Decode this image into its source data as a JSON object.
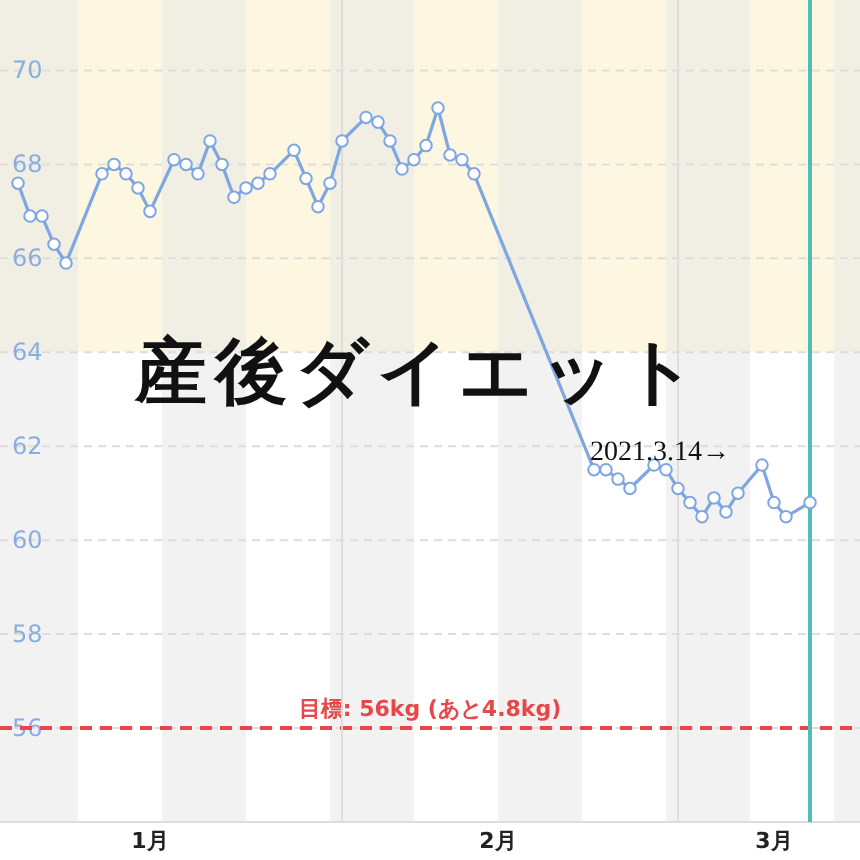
{
  "chart_data": {
    "type": "line",
    "title": "産後ダイエット",
    "x": [
      "2021-01-05",
      "2021-01-06",
      "2021-01-07",
      "2021-01-08",
      "2021-01-09",
      "2021-01-12",
      "2021-01-13",
      "2021-01-14",
      "2021-01-15",
      "2021-01-16",
      "2021-01-18",
      "2021-01-19",
      "2021-01-20",
      "2021-01-21",
      "2021-01-22",
      "2021-01-23",
      "2021-01-24",
      "2021-01-25",
      "2021-01-26",
      "2021-01-28",
      "2021-01-29",
      "2021-01-30",
      "2021-01-31",
      "2021-02-01",
      "2021-02-03",
      "2021-02-04",
      "2021-02-05",
      "2021-02-06",
      "2021-02-07",
      "2021-02-08",
      "2021-02-09",
      "2021-02-10",
      "2021-02-11",
      "2021-02-12",
      "2021-02-22",
      "2021-02-23",
      "2021-02-24",
      "2021-02-25",
      "2021-02-27",
      "2021-02-28",
      "2021-03-01",
      "2021-03-02",
      "2021-03-03",
      "2021-03-04",
      "2021-03-05",
      "2021-03-06",
      "2021-03-08",
      "2021-03-09",
      "2021-03-10",
      "2021-03-12"
    ],
    "series": [
      {
        "color": "#7ea6e0",
        "values": [
          67.6,
          66.9,
          66.9,
          66.3,
          65.9,
          67.8,
          68.0,
          67.8,
          67.5,
          67.0,
          68.1,
          68.0,
          67.8,
          68.5,
          68.0,
          67.3,
          67.5,
          67.6,
          67.8,
          68.3,
          67.7,
          67.1,
          67.6,
          68.5,
          69.0,
          68.9,
          68.5,
          67.9,
          68.1,
          68.4,
          69.2,
          68.2,
          68.1,
          67.8,
          61.5,
          61.5,
          61.3,
          61.1,
          61.6,
          61.5,
          61.1,
          60.8,
          60.5,
          60.9,
          60.6,
          61.0,
          61.6,
          60.8,
          60.5,
          60.8
        ]
      }
    ],
    "xlim": [
      "2021-01-03T12:00",
      "2021-03-16T04:00"
    ],
    "ylim": [
      54,
      71.5
    ],
    "xticks": [
      {
        "value": "2021-01-16",
        "label": "1月"
      },
      {
        "value": "2021-02-14",
        "label": "2月"
      },
      {
        "value": "2021-03-09",
        "label": "3月"
      }
    ],
    "yticks": [
      56,
      58,
      60,
      62,
      64,
      66,
      68,
      70
    ],
    "grid": "y",
    "marker": "circle",
    "annotations": [
      "2021.3.14→"
    ],
    "ref_lines": [
      {
        "axis": "y",
        "value": 56,
        "label": "目標: 56kg (あと4.8kg)",
        "color": "#e8474a",
        "line_style": "dashed"
      },
      {
        "axis": "x",
        "value": "2021-02-01",
        "color": "#dddddd"
      },
      {
        "axis": "x",
        "value": "2021-03-01",
        "color": "#dddddd"
      },
      {
        "axis": "x",
        "value": "2021-03-12",
        "color": "#4fbfb6"
      }
    ],
    "bands": [
      {
        "axis": "y",
        "from": 64,
        "to": 71.5,
        "color": "#fdf6e0"
      },
      {
        "axis": "x",
        "from": "2021-01-03T12:00",
        "to": "2021-01-10",
        "color": "#e8e8e8"
      },
      {
        "axis": "x",
        "from": "2021-01-17",
        "to": "2021-01-24",
        "color": "#e8e8e8"
      },
      {
        "axis": "x",
        "from": "2021-01-31",
        "to": "2021-02-07",
        "color": "#e8e8e8"
      },
      {
        "axis": "x",
        "from": "2021-02-14",
        "to": "2021-02-21",
        "color": "#e8e8e8"
      },
      {
        "axis": "x",
        "from": "2021-02-28",
        "to": "2021-03-07",
        "color": "#e8e8e8"
      },
      {
        "axis": "x",
        "from": "2021-03-14",
        "to": "2021-03-16T04:00",
        "color": "#e8e8e8"
      }
    ]
  }
}
